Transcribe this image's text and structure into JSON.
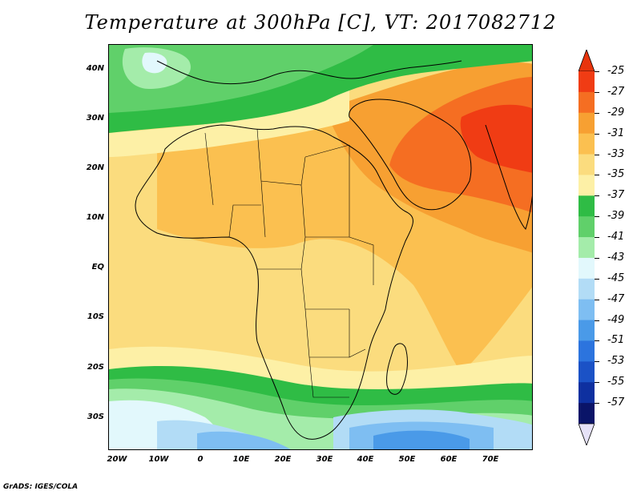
{
  "title": "Temperature at 300hPa [C], VT: 2017082712",
  "credit": "GrADS: IGES/COLA",
  "map": {
    "lat_labels": [
      "40N",
      "30N",
      "20N",
      "10N",
      "EQ",
      "10S",
      "20S",
      "30S"
    ],
    "lon_labels": [
      "20W",
      "10W",
      "0",
      "10E",
      "20E",
      "30E",
      "40E",
      "50E",
      "60E",
      "70E"
    ]
  },
  "colorbar": {
    "levels": [
      {
        "label": "-25",
        "color": "#f03c14"
      },
      {
        "label": "-27",
        "color": "#f56e22"
      },
      {
        "label": "-29",
        "color": "#f7a032"
      },
      {
        "label": "-31",
        "color": "#fbc050"
      },
      {
        "label": "-33",
        "color": "#fbdc7e"
      },
      {
        "label": "-35",
        "color": "#fdf0a6"
      },
      {
        "label": "-37",
        "color": "#2fbc45"
      },
      {
        "label": "-39",
        "color": "#60d06a"
      },
      {
        "label": "-41",
        "color": "#a4ecaa"
      },
      {
        "label": "-43",
        "color": "#e2f8fc"
      },
      {
        "label": "-45",
        "color": "#b2dcf6"
      },
      {
        "label": "-47",
        "color": "#7ebef2"
      },
      {
        "label": "-49",
        "color": "#4a9ae8"
      },
      {
        "label": "-51",
        "color": "#2c74de"
      },
      {
        "label": "-53",
        "color": "#1b52c6"
      },
      {
        "label": "-55",
        "color": "#0e30a0"
      },
      {
        "label": "-57",
        "color": "#0a1468"
      }
    ],
    "top_arrow_color": "#e8340c",
    "bottom_arrow_color": "#e6e2f8"
  }
}
